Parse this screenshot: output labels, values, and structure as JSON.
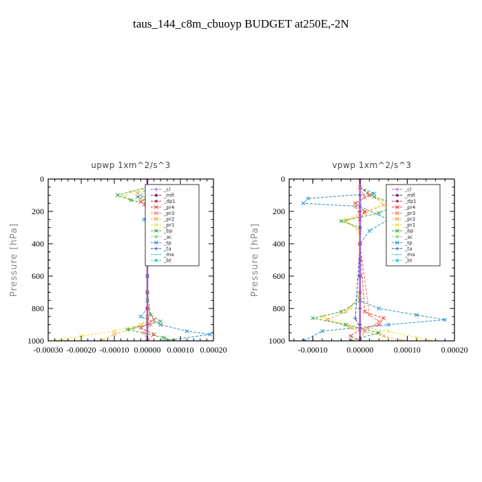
{
  "figure_title": "taus_144_c8m_cbuoyp  BUDGET at250E,-2N",
  "legend_entries": [
    {
      "name": "_cl",
      "color": "#9b59d0",
      "marker": "plus"
    },
    {
      "name": "_mfl",
      "color": "#7b1f6a",
      "marker": "diamond"
    },
    {
      "name": "_dp1",
      "color": "#b0306a",
      "marker": "diamond"
    },
    {
      "name": "_pr4",
      "color": "#e8413c",
      "marker": "x"
    },
    {
      "name": "_pr3",
      "color": "#f07b5a",
      "marker": "x"
    },
    {
      "name": "_pr2",
      "color": "#f2a93b",
      "marker": "x"
    },
    {
      "name": "_pr1",
      "color": "#f0e040",
      "marker": "x"
    },
    {
      "name": "_bp",
      "color": "#3aa83a",
      "marker": "x"
    },
    {
      "name": "_ac",
      "color": "#7de07d",
      "marker": "circle"
    },
    {
      "name": "_tp",
      "color": "#2a90c8",
      "marker": "x"
    },
    {
      "name": "_ta",
      "color": "#2040c0",
      "marker": "plus"
    },
    {
      "name": "_ma",
      "color": "#40c0d8",
      "marker": "dash"
    },
    {
      "name": "_bt",
      "color": "#30d0e0",
      "marker": "circle"
    }
  ],
  "chart_data": [
    {
      "type": "line",
      "title": "upwp   1xm^2/s^3",
      "ylabel": "Pressure [hPa]",
      "xlim": [
        -0.0003,
        0.0002
      ],
      "ylim": [
        1000,
        0
      ],
      "xticks": [
        -0.0003,
        -0.0002,
        -0.0001,
        0.0,
        0.0001,
        0.0002
      ],
      "xtick_labels": [
        "-0.00030",
        "-0.00020",
        "-0.00010",
        "0.00000",
        "0.00010",
        "0.00020"
      ],
      "yticks": [
        0,
        200,
        400,
        600,
        800,
        1000
      ],
      "ytick_labels": [
        "0",
        "200",
        "400",
        "600",
        "800",
        "1000"
      ],
      "legend": "top-right",
      "grid": false,
      "series": [
        {
          "name": "_tp",
          "color": "#2a90c8",
          "x": [
            0,
            8e-05,
            0.00015,
            -3e-05,
            2e-05,
            -1e-05,
            0,
            0,
            0,
            0,
            0,
            -2e-05,
            4e-05,
            0.00012,
            0.00019,
            5e-05
          ],
          "y": [
            50,
            80,
            95,
            110,
            150,
            250,
            300,
            400,
            600,
            750,
            800,
            850,
            900,
            940,
            960,
            1000
          ]
        },
        {
          "name": "_pr1",
          "color": "#f0e040",
          "x": [
            0,
            -5e-05,
            -7e-05,
            3e-05,
            0,
            0,
            0,
            0,
            -2e-05,
            -0.0001,
            -0.0002,
            -0.00028
          ],
          "y": [
            50,
            80,
            110,
            180,
            250,
            400,
            700,
            850,
            900,
            940,
            970,
            1000
          ]
        },
        {
          "name": "_pr2",
          "color": "#f2a93b",
          "x": [
            0,
            -3e-05,
            -2e-05,
            6e-05,
            2e-05,
            0,
            0,
            0,
            -4e-05,
            -0.0001,
            -0.00014
          ],
          "y": [
            50,
            85,
            120,
            170,
            220,
            300,
            700,
            880,
            920,
            960,
            1000
          ]
        },
        {
          "name": "_bp",
          "color": "#3aa83a",
          "x": [
            0,
            -9e-05,
            -5e-05,
            4e-05,
            1e-05,
            0,
            0,
            1e-05,
            4e-05,
            -6e-05,
            5e-05,
            8e-05
          ],
          "y": [
            50,
            100,
            130,
            170,
            220,
            300,
            700,
            840,
            880,
            930,
            980,
            1000
          ]
        },
        {
          "name": "_pr4",
          "color": "#e8413c",
          "x": [
            0,
            2e-05,
            -2e-05,
            2e-05,
            0,
            0,
            0,
            2e-05,
            -2e-05,
            2e-05,
            0
          ],
          "y": [
            50,
            100,
            140,
            190,
            250,
            400,
            800,
            870,
            920,
            960,
            1000
          ]
        },
        {
          "name": "_pr3",
          "color": "#f07b5a",
          "x": [
            0,
            1e-05,
            -1e-05,
            1e-05,
            0,
            0,
            0,
            1e-05,
            -1e-05,
            0
          ],
          "y": [
            50,
            110,
            160,
            210,
            260,
            500,
            850,
            900,
            950,
            1000
          ]
        },
        {
          "name": "_ma",
          "color": "#40c0d8",
          "x": [
            0,
            -2e-05,
            2e-05,
            0,
            0,
            0,
            0
          ],
          "y": [
            50,
            100,
            150,
            200,
            500,
            900,
            1000
          ]
        },
        {
          "name": "_ta",
          "color": "#2040c0",
          "x": [
            0,
            0,
            0,
            0
          ],
          "y": [
            0,
            300,
            700,
            1000
          ]
        },
        {
          "name": "_mfl",
          "color": "#7b1f6a",
          "x": [
            0,
            0,
            0,
            0,
            0,
            0,
            0,
            0,
            0,
            0,
            0
          ],
          "y": [
            0,
            100,
            200,
            300,
            400,
            500,
            600,
            700,
            800,
            900,
            1000
          ]
        },
        {
          "name": "_dp1",
          "color": "#b0306a",
          "x": [
            0,
            0,
            0,
            0,
            0,
            0,
            0,
            0,
            0,
            0,
            0
          ],
          "y": [
            0,
            100,
            200,
            300,
            400,
            500,
            600,
            700,
            800,
            900,
            1000
          ]
        },
        {
          "name": "_cl",
          "color": "#9b59d0",
          "x": [
            0,
            0
          ],
          "y": [
            0,
            1000
          ]
        }
      ]
    },
    {
      "type": "line",
      "title": "vpwp   1xm^2/s^3",
      "ylabel": "Pressure [hPa]",
      "xlim": [
        -0.00015,
        0.0002
      ],
      "ylim": [
        1000,
        0
      ],
      "xticks": [
        -0.0001,
        0.0,
        0.0001,
        0.0002
      ],
      "xtick_labels": [
        "-0.00010",
        "0.00000",
        "0.00010",
        "0.00020"
      ],
      "yticks": [
        0,
        200,
        400,
        600,
        800,
        1000
      ],
      "ytick_labels": [
        "0",
        "200",
        "400",
        "600",
        "800",
        "1000"
      ],
      "legend": "top-right",
      "grid": false,
      "series": [
        {
          "name": "_tp",
          "color": "#2a90c8",
          "x": [
            0,
            3e-05,
            -0.00011,
            -0.00012,
            0,
            6e-05,
            2e-05,
            0,
            0,
            0,
            4e-05,
            0.00012,
            0.00018,
            6e-05,
            -8e-05,
            -0.00012
          ],
          "y": [
            50,
            90,
            120,
            150,
            170,
            250,
            320,
            400,
            600,
            750,
            800,
            840,
            870,
            900,
            940,
            1000
          ]
        },
        {
          "name": "_pr1",
          "color": "#f0e040",
          "x": [
            0,
            2e-05,
            6e-05,
            1e-05,
            -3e-05,
            0,
            0,
            -2e-05,
            -8e-05,
            -3e-05,
            6e-05,
            0.00012,
            0.00015
          ],
          "y": [
            50,
            100,
            150,
            200,
            250,
            320,
            700,
            800,
            850,
            900,
            940,
            980,
            1000
          ]
        },
        {
          "name": "_pr2",
          "color": "#f2a93b",
          "x": [
            0,
            3e-05,
            5e-05,
            1e-05,
            -3e-05,
            0,
            0,
            -3e-05,
            -7e-05,
            -2e-05,
            5e-05,
            9e-05
          ],
          "y": [
            50,
            110,
            160,
            210,
            260,
            330,
            720,
            820,
            870,
            920,
            970,
            1000
          ]
        },
        {
          "name": "_bp",
          "color": "#3aa83a",
          "x": [
            0,
            3e-05,
            8e-05,
            4e-05,
            -4e-05,
            0,
            0,
            -4e-05,
            -0.0001,
            -3e-05,
            4e-05,
            -2e-05
          ],
          "y": [
            50,
            110,
            160,
            210,
            260,
            300,
            750,
            820,
            860,
            900,
            950,
            1000
          ]
        },
        {
          "name": "_pr4",
          "color": "#e8413c",
          "x": [
            0,
            2e-05,
            -1e-05,
            1e-05,
            0,
            0,
            1e-05,
            5e-05,
            4e-05,
            0,
            -2e-05,
            0
          ],
          "y": [
            50,
            100,
            150,
            200,
            250,
            400,
            820,
            860,
            900,
            930,
            970,
            1000
          ]
        },
        {
          "name": "_pr3",
          "color": "#f07b5a",
          "x": [
            0,
            1e-05,
            -1e-05,
            0,
            0,
            2e-05,
            4e-05,
            1e-05,
            0
          ],
          "y": [
            50,
            110,
            170,
            230,
            400,
            840,
            880,
            940,
            1000
          ]
        },
        {
          "name": "_ta",
          "color": "#2040c0",
          "x": [
            0,
            0,
            -1e-05,
            0,
            0
          ],
          "y": [
            0,
            400,
            860,
            920,
            1000
          ]
        },
        {
          "name": "_mfl",
          "color": "#7b1f6a",
          "x": [
            0,
            0,
            0,
            0,
            0,
            0,
            0,
            0,
            0,
            0,
            0
          ],
          "y": [
            0,
            100,
            200,
            300,
            400,
            500,
            600,
            700,
            800,
            900,
            1000
          ]
        },
        {
          "name": "_dp1",
          "color": "#b0306a",
          "x": [
            0,
            0,
            0,
            0,
            0,
            0,
            0,
            0,
            0,
            0,
            0
          ],
          "y": [
            0,
            100,
            200,
            300,
            400,
            500,
            600,
            700,
            800,
            900,
            1000
          ]
        },
        {
          "name": "_cl",
          "color": "#9b59d0",
          "x": [
            0,
            0
          ],
          "y": [
            0,
            1000
          ]
        }
      ]
    }
  ]
}
